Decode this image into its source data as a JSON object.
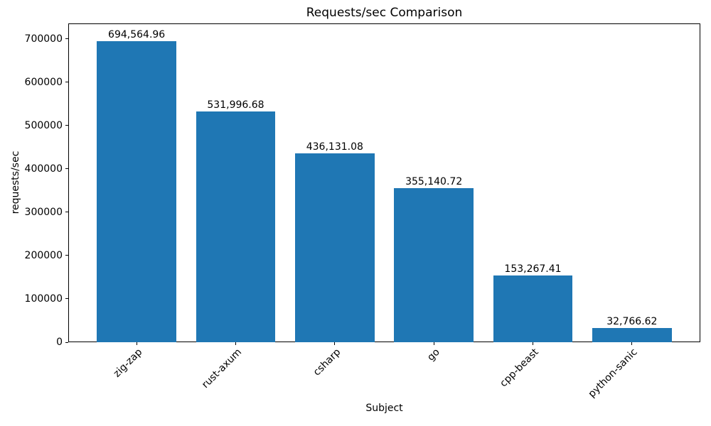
{
  "chart_data": {
    "type": "bar",
    "title": "Requests/sec Comparison",
    "xlabel": "Subject",
    "ylabel": "requests/sec",
    "categories": [
      "zig-zap",
      "rust-axum",
      "csharp",
      "go",
      "cpp-beast",
      "python-sanic"
    ],
    "values": [
      694564.96,
      531996.68,
      436131.08,
      355140.72,
      153267.41,
      32766.62
    ],
    "value_labels": [
      "694,564.96",
      "531,996.68",
      "436,131.08",
      "355,140.72",
      "153,267.41",
      "32,766.62"
    ],
    "yticks": [
      0,
      100000,
      200000,
      300000,
      400000,
      500000,
      600000,
      700000
    ],
    "ytick_labels": [
      "0",
      "100000",
      "200000",
      "300000",
      "400000",
      "500000",
      "600000",
      "700000"
    ],
    "ylim": [
      0,
      736000
    ],
    "grid": false,
    "legend": null,
    "colors": {
      "bar": "#1f77b4",
      "text": "#000000",
      "spine": "#000000"
    }
  }
}
